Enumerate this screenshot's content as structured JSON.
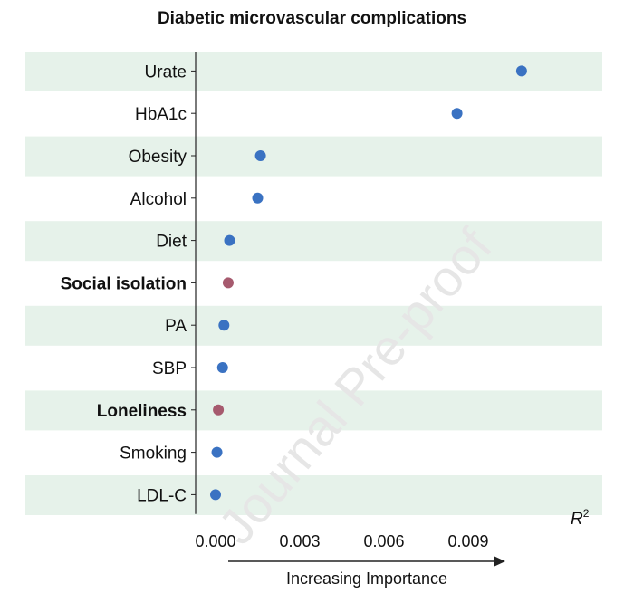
{
  "chart_data": {
    "type": "scatter",
    "title": "Diabetic microvascular complications",
    "xlabel": "R²",
    "arrow_label": "Increasing Importance",
    "xlim": [
      -0.00075,
      0.0115
    ],
    "xticks": [
      0.0,
      0.003,
      0.006,
      0.009
    ],
    "xtick_labels": [
      "0.000",
      "0.003",
      "0.006",
      "0.009"
    ],
    "categories": [
      "Urate",
      "HbA1c",
      "Obesity",
      "Alcohol",
      "Diet",
      "Social isolation",
      "PA",
      "SBP",
      "Loneliness",
      "Smoking",
      "LDL-C"
    ],
    "values": [
      0.0109,
      0.0086,
      0.0016,
      0.0015,
      0.0005,
      0.00045,
      0.0003,
      0.00025,
      0.0001,
      5e-05,
      0.0
    ],
    "bold_categories": [
      "Social isolation",
      "Loneliness"
    ],
    "point_colors": [
      "#3a72c2",
      "#3a72c2",
      "#3a72c2",
      "#3a72c2",
      "#3a72c2",
      "#a65a6e",
      "#3a72c2",
      "#3a72c2",
      "#a65a6e",
      "#3a72c2",
      "#3a72c2"
    ],
    "band_color": "#e6f2ea",
    "watermark": "Journal Pre-proof"
  }
}
